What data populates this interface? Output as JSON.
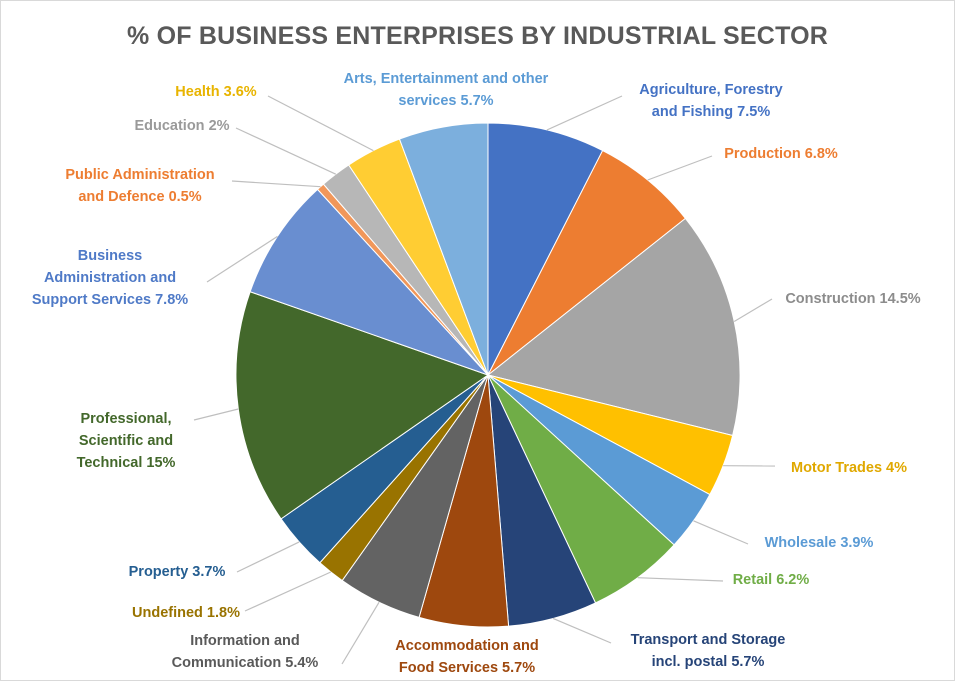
{
  "chart_data": {
    "type": "pie",
    "title": "% OF BUSINESS ENTERPRISES BY INDUSTRIAL SECTOR",
    "start_angle_deg": 0,
    "direction": "clockwise",
    "slices": [
      {
        "name": "Agriculture, Forestry and Fishing",
        "value": 7.5,
        "color": "#4472C4",
        "label_lines": [
          "Agriculture, Forestry",
          "and Fishing 7.5%"
        ]
      },
      {
        "name": "Production",
        "value": 6.8,
        "color": "#ED7D31",
        "label_lines": [
          "Production 6.8%"
        ]
      },
      {
        "name": "Construction",
        "value": 14.5,
        "color": "#A5A5A5",
        "label_lines": [
          "Construction 14.5%"
        ]
      },
      {
        "name": "Motor Trades",
        "value": 4,
        "color": "#FFC000",
        "label_lines": [
          "Motor Trades 4%"
        ]
      },
      {
        "name": "Wholesale",
        "value": 3.9,
        "color": "#5B9BD5",
        "label_lines": [
          "Wholesale 3.9%"
        ]
      },
      {
        "name": "Retail",
        "value": 6.2,
        "color": "#70AD47",
        "label_lines": [
          "Retail 6.2%"
        ]
      },
      {
        "name": "Transport and Storage incl. postal",
        "value": 5.7,
        "color": "#264478",
        "label_lines": [
          "Transport and Storage",
          "incl. postal 5.7%"
        ]
      },
      {
        "name": "Accommodation and Food Services",
        "value": 5.7,
        "color": "#9E480E",
        "label_lines": [
          "Accommodation and",
          "Food Services 5.7%"
        ]
      },
      {
        "name": "Information and Communication",
        "value": 5.4,
        "color": "#636363",
        "label_lines": [
          "Information and",
          "Communication 5.4%"
        ]
      },
      {
        "name": "Undefined",
        "value": 1.8,
        "color": "#997300",
        "label_lines": [
          "Undefined 1.8%"
        ]
      },
      {
        "name": "Property",
        "value": 3.7,
        "color": "#255E91",
        "label_lines": [
          "Property 3.7%"
        ]
      },
      {
        "name": "Professional, Scientific and Technical",
        "value": 15,
        "color": "#43682B",
        "label_lines": [
          "Professional,",
          "Scientific and",
          "Technical 15%"
        ]
      },
      {
        "name": "Business Administration and Support Services",
        "value": 7.8,
        "color": "#698ED0",
        "label_lines": [
          "Business",
          "Administration and",
          "Support Services 7.8%"
        ]
      },
      {
        "name": "Public Administration and Defence",
        "value": 0.5,
        "color": "#F1975A",
        "label_lines": [
          "Public Administration",
          "and Defence 0.5%"
        ]
      },
      {
        "name": "Education",
        "value": 2,
        "color": "#B7B7B7",
        "label_lines": [
          "Education 2%"
        ]
      },
      {
        "name": "Health",
        "value": 3.6,
        "color": "#FFCD33",
        "label_lines": [
          "Health 3.6%"
        ]
      },
      {
        "name": "Arts, Entertainment and other services",
        "value": 5.7,
        "color": "#7CAFDD",
        "label_lines": [
          "Arts, Entertainment and other",
          "services 5.7%"
        ]
      }
    ]
  }
}
